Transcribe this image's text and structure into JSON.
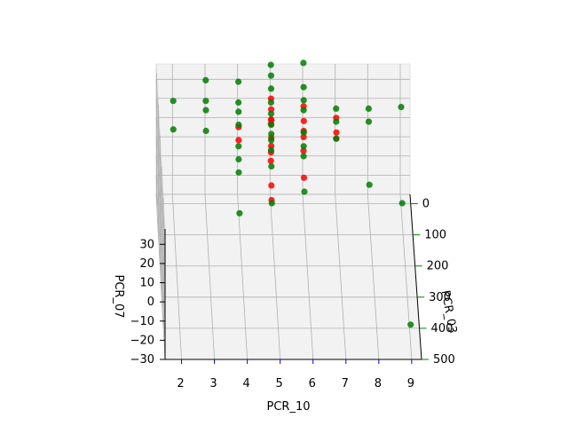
{
  "colors": {
    "red_series": "#ff0000",
    "green_series": "#007f00",
    "x_tick": "#0000ff",
    "z_tick": "#008000",
    "pane": "#f2f2f2",
    "grid": "#b0b0b0"
  },
  "chart_data": {
    "type": "scatter",
    "projection": "3d",
    "xlabel": "PCR_10",
    "ylabel": "PCR_03",
    "zlabel": "PCR_07",
    "x_ticks": [
      "2",
      "3",
      "4",
      "5",
      "6",
      "7",
      "8",
      "9"
    ],
    "y_ticks": [
      "0",
      "100",
      "200",
      "300",
      "400",
      "500"
    ],
    "z_ticks": [
      "30",
      "20",
      "10",
      "0",
      "−10",
      "−20",
      "−30"
    ],
    "xlim": [
      1.5,
      9.3
    ],
    "ylim": [
      -30,
      500
    ],
    "zlim": [
      -30,
      38
    ],
    "grid": true,
    "series": [
      {
        "color": "red",
        "points": [
          [
            5,
            20,
            28
          ],
          [
            5,
            30,
            24
          ],
          [
            5,
            40,
            20
          ],
          [
            5,
            25,
            18
          ],
          [
            5,
            15,
            14
          ],
          [
            5,
            35,
            10
          ],
          [
            5,
            30,
            5
          ],
          [
            5,
            20,
            0
          ],
          [
            5,
            10,
            -6
          ],
          [
            5,
            40,
            -14
          ],
          [
            5,
            50,
            -20
          ],
          [
            6,
            20,
            24
          ],
          [
            6,
            30,
            18
          ],
          [
            6,
            25,
            12
          ],
          [
            6,
            20,
            8
          ],
          [
            6,
            15,
            0
          ],
          [
            6,
            40,
            -10
          ],
          [
            4,
            25,
            14
          ],
          [
            4,
            30,
            8
          ],
          [
            7,
            20,
            18
          ],
          [
            7,
            30,
            12
          ],
          [
            7,
            25,
            8
          ]
        ]
      },
      {
        "color": "green",
        "points": [
          [
            5,
            10,
            44
          ],
          [
            5,
            20,
            40
          ],
          [
            5,
            25,
            34
          ],
          [
            5,
            20,
            26
          ],
          [
            5,
            25,
            21
          ],
          [
            5,
            30,
            16
          ],
          [
            5,
            35,
            12
          ],
          [
            5,
            30,
            8
          ],
          [
            5,
            25,
            2
          ],
          [
            5,
            40,
            -4
          ],
          [
            5,
            60,
            -20
          ],
          [
            6,
            10,
            45
          ],
          [
            6,
            20,
            34
          ],
          [
            6,
            25,
            28
          ],
          [
            6,
            20,
            22
          ],
          [
            6,
            30,
            12
          ],
          [
            6,
            25,
            4
          ],
          [
            6,
            20,
            -2
          ],
          [
            6,
            60,
            -14
          ],
          [
            4,
            15,
            36
          ],
          [
            4,
            20,
            26
          ],
          [
            4,
            25,
            22
          ],
          [
            4,
            30,
            16
          ],
          [
            4,
            25,
            4
          ],
          [
            4,
            30,
            -2
          ],
          [
            4,
            35,
            -8
          ],
          [
            4,
            80,
            -22
          ],
          [
            3,
            10,
            36
          ],
          [
            3,
            15,
            26
          ],
          [
            3,
            20,
            22
          ],
          [
            3,
            25,
            12
          ],
          [
            2,
            15,
            26
          ],
          [
            2,
            20,
            12
          ],
          [
            7,
            15,
            22
          ],
          [
            7,
            20,
            16
          ],
          [
            7,
            25,
            8
          ],
          [
            8,
            15,
            22
          ],
          [
            8,
            20,
            16
          ],
          [
            8,
            50,
            -12
          ],
          [
            9,
            10,
            22
          ],
          [
            9,
            60,
            -20
          ],
          [
            9,
            450,
            -20
          ]
        ]
      }
    ]
  }
}
